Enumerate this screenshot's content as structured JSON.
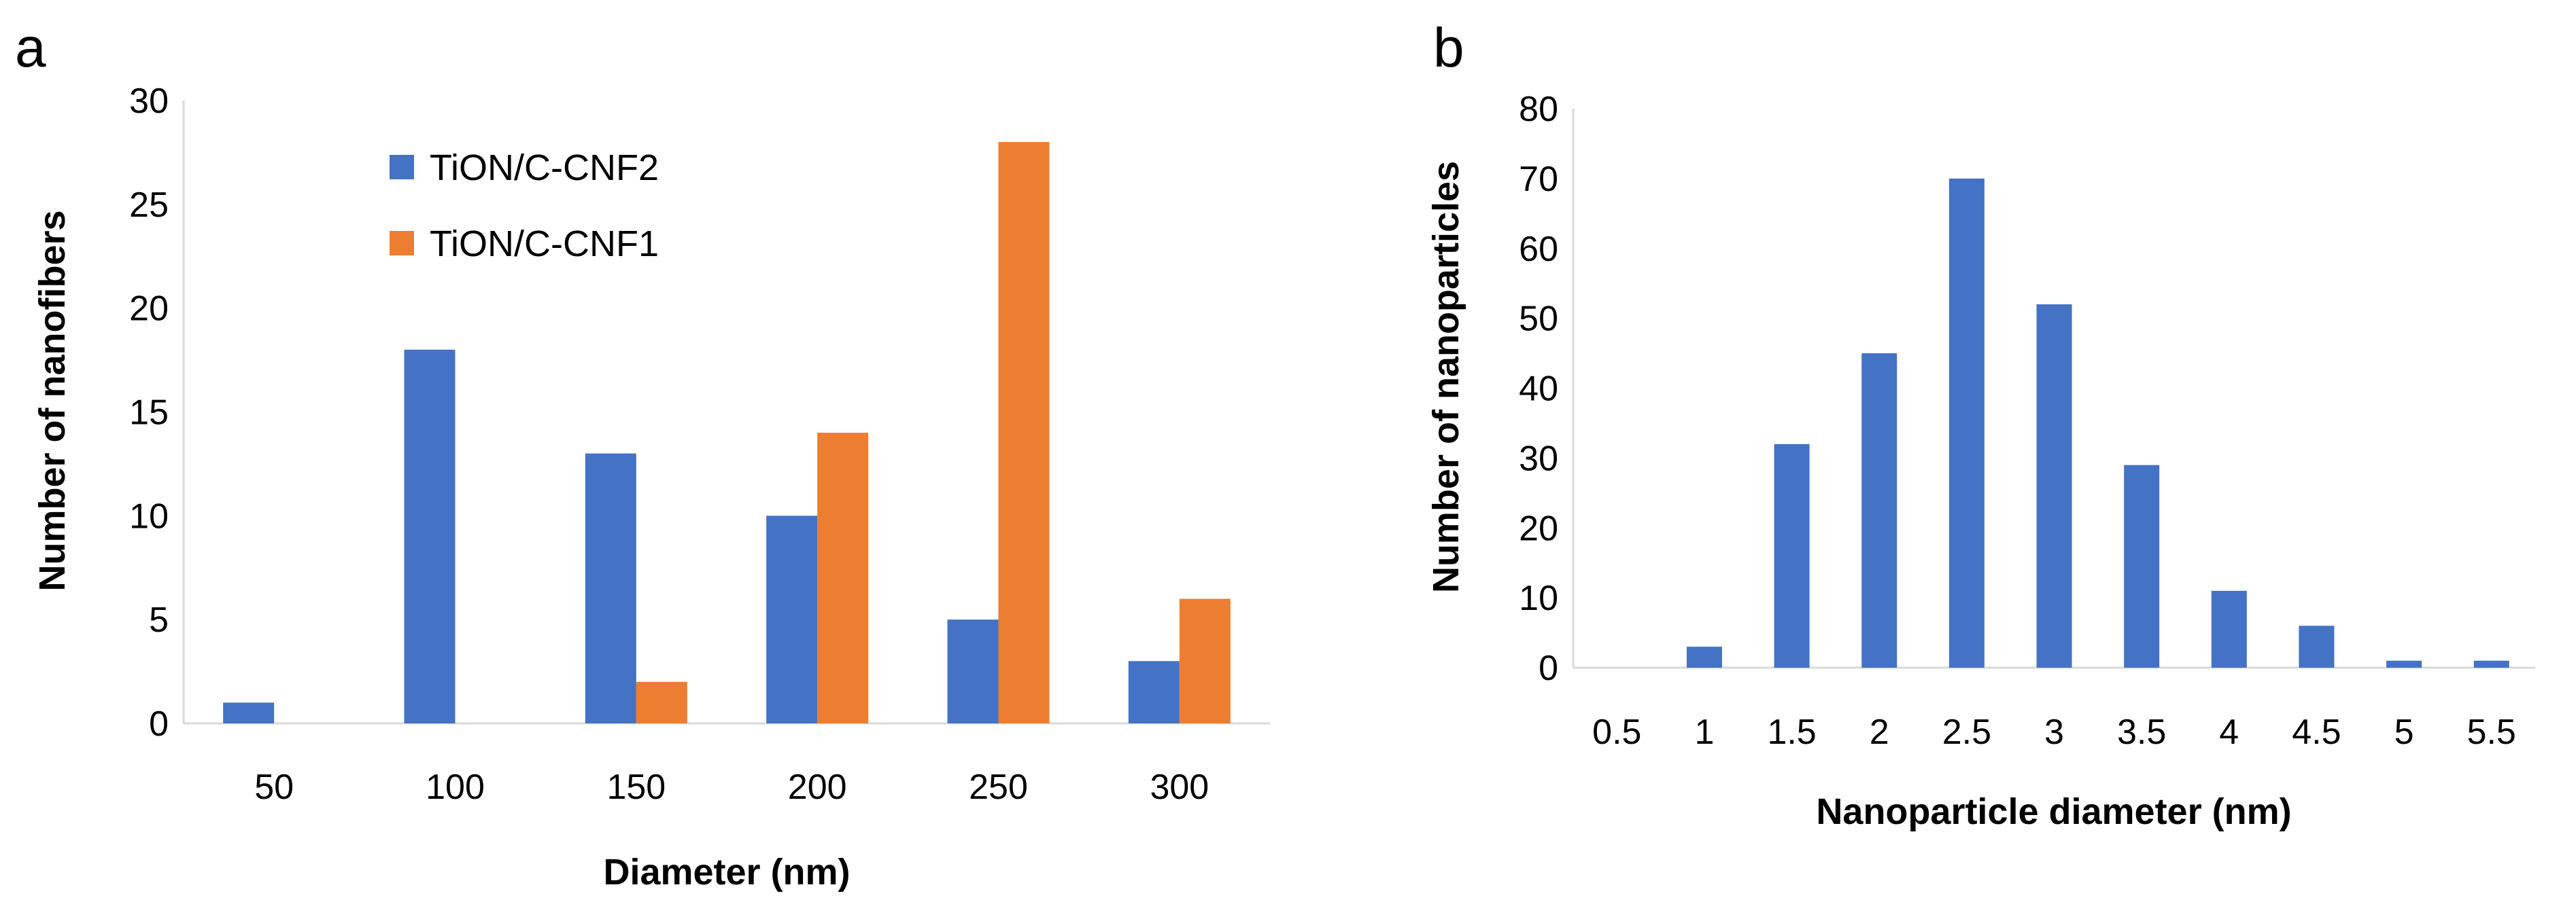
{
  "colors": {
    "series_blue": "#4472C4",
    "series_orange": "#ED7D31"
  },
  "chart_data": [
    {
      "panel_label": "a",
      "type": "bar",
      "title": "",
      "xlabel": "Diameter (nm)",
      "ylabel": "Number of nanofibers",
      "categories": [
        "50",
        "100",
        "150",
        "200",
        "250",
        "300"
      ],
      "series": [
        {
          "name": "TiON/C-CNF2",
          "color": "#4472C4",
          "values": [
            1,
            18,
            13,
            10,
            5,
            3
          ]
        },
        {
          "name": "TiON/C-CNF1",
          "color": "#ED7D31",
          "values": [
            0,
            0,
            2,
            14,
            28,
            6
          ]
        }
      ],
      "ylim": [
        0,
        30
      ],
      "yticks": [
        "0",
        "5",
        "10",
        "15",
        "20",
        "25",
        "30"
      ],
      "grid": false,
      "legend": "top-left"
    },
    {
      "panel_label": "b",
      "type": "bar",
      "title": "",
      "xlabel": "Nanoparticle diameter (nm)",
      "ylabel": "Number of nanoparticles",
      "categories": [
        "0.5",
        "1",
        "1.5",
        "2",
        "2.5",
        "3",
        "3.5",
        "4",
        "4.5",
        "5",
        "5.5"
      ],
      "series": [
        {
          "name": "",
          "color": "#4472C4",
          "values": [
            0,
            3,
            32,
            45,
            70,
            52,
            29,
            11,
            6,
            1,
            1
          ]
        }
      ],
      "ylim": [
        0,
        80
      ],
      "yticks": [
        "0",
        "10",
        "20",
        "30",
        "40",
        "50",
        "60",
        "70",
        "80"
      ],
      "grid": false,
      "legend": "none"
    }
  ]
}
